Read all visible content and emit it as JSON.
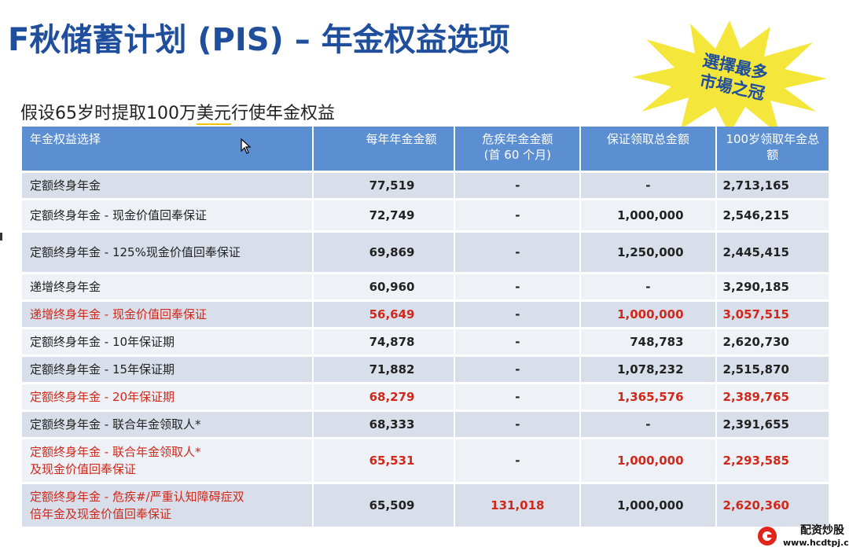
{
  "title": "F秋储蓄计划 (PIS) – 年金权益选项",
  "subtitle": {
    "prefix": "假设65岁时提取100万",
    "highlight": "美元",
    "suffix": "行使年金权益"
  },
  "badge": {
    "line1": "選擇最多",
    "line2": "市場之冠",
    "color": "#f5e63c"
  },
  "table": {
    "headers": [
      "年金权益选择",
      "每年年金金额",
      "危疾年金金额\n(首 60 个月)",
      "保证领取总金额",
      "100岁领取年金总\n额"
    ],
    "rows": [
      {
        "name": "定额终身年金",
        "annual": "77,519",
        "ci": "-",
        "guaranteed": "-",
        "total": "2,713,165",
        "red": false
      },
      {
        "name": "定额终身年金 - 现金价值回奉保证",
        "annual": "72,749",
        "ci": "-",
        "guaranteed": "1,000,000",
        "total": "2,546,215",
        "red": false
      },
      {
        "name": "定额终身年金 - 125%现金价值回奉保证",
        "annual": "69,869",
        "ci": "-",
        "guaranteed": "1,250,000",
        "total": "2,445,415",
        "red": false
      },
      {
        "name": "递增终身年金",
        "annual": "60,960",
        "ci": "-",
        "guaranteed": "-",
        "total": "3,290,185",
        "red": false
      },
      {
        "name": "递增终身年金 - 现金价值回奉保证",
        "annual": "56,649",
        "ci": "-",
        "guaranteed": "1,000,000",
        "total": "3,057,515",
        "red": true
      },
      {
        "name": "定额终身年金 - 10年保证期",
        "annual": "74,878",
        "ci": "-",
        "guaranteed": "748,783",
        "total": "2,620,730",
        "red": false
      },
      {
        "name": "定额终身年金 - 15年保证期",
        "annual": "71,882",
        "ci": "-",
        "guaranteed": "1,078,232",
        "total": "2,515,870",
        "red": false
      },
      {
        "name": "定额终身年金 - 20年保证期",
        "annual": "68,279",
        "ci": "-",
        "guaranteed": "1,365,576",
        "total": "2,389,765",
        "red": true
      },
      {
        "name": "定额终身年金 - 联合年金领取人*",
        "annual": "68,333",
        "ci": "-",
        "guaranteed": "-",
        "total": "2,391,655",
        "red": false
      },
      {
        "name": "定额终身年金 - 联合年金领取人*\n及现金价值回奉保证",
        "annual": "65,531",
        "ci": "-",
        "guaranteed": "1,000,000",
        "total": "2,293,585",
        "red": true
      },
      {
        "name": "定额终身年金 - 危疾#/严重认知障碍症双\n倍年金及现金价值回奉保证",
        "annual": "65,509",
        "ci": "131,018",
        "guaranteed": "1,000,000",
        "total": "2,620,360",
        "red": true
      }
    ]
  },
  "watermark": {
    "line1": "配资炒股",
    "line2": "www.hcdtpj.com",
    "color": "#e2231a"
  },
  "colors": {
    "title": "#1f4e9c",
    "header_bg": "#5b8fd1",
    "row_dark": "#d9dfea",
    "row_light": "#eef1f6",
    "red_text": "#d0281a"
  }
}
